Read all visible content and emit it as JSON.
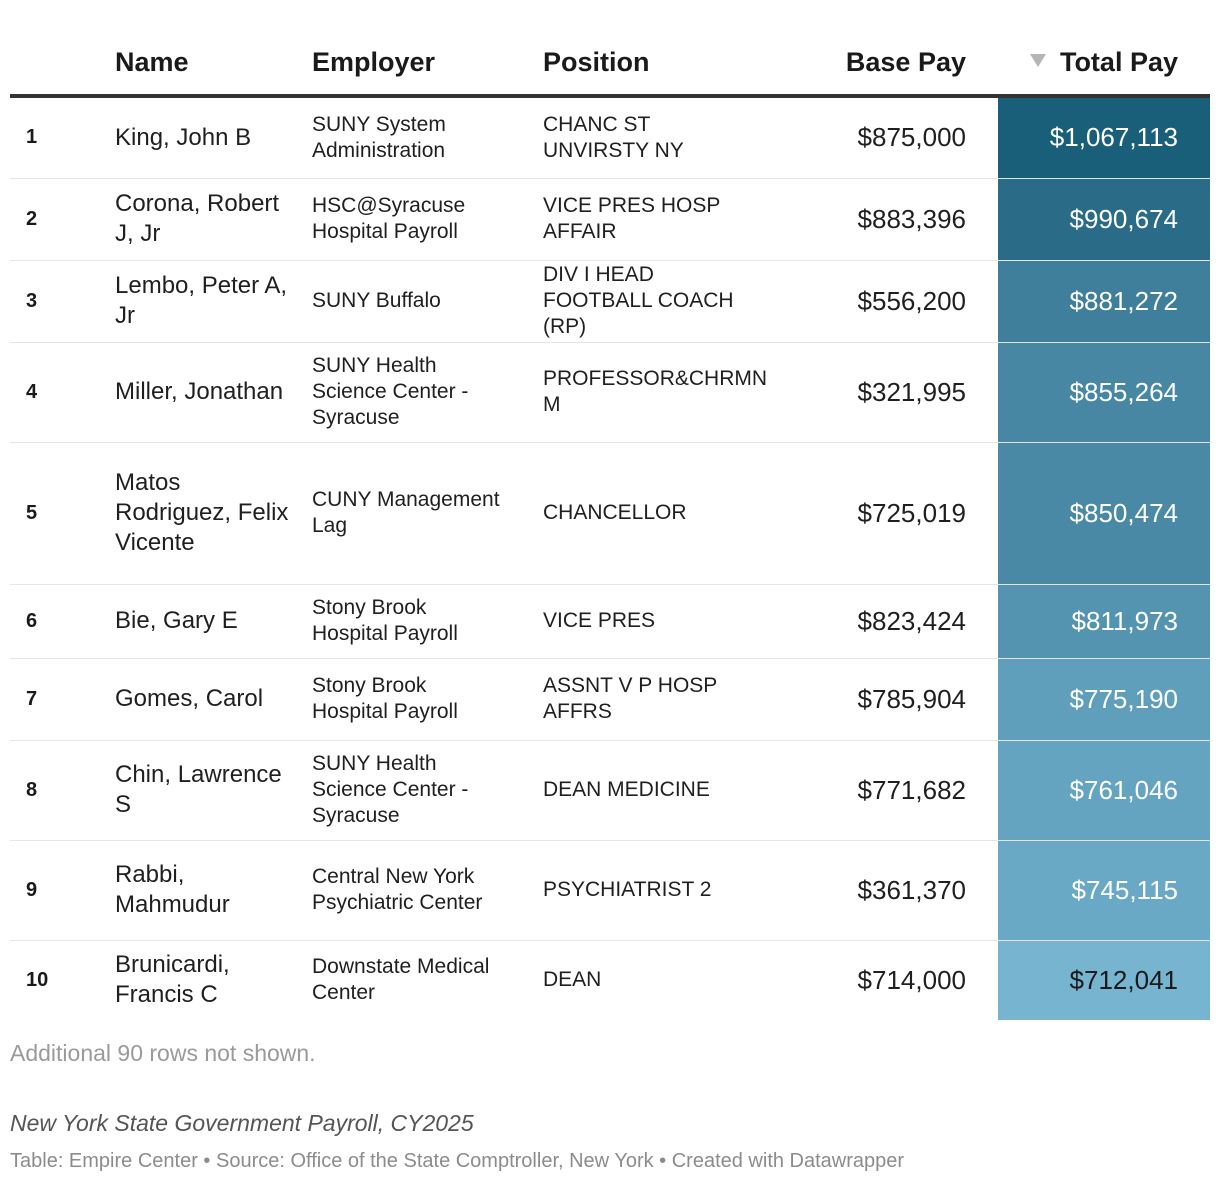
{
  "chart_data": {
    "type": "table",
    "columns": {
      "rank": "",
      "name": "Name",
      "employer": "Employer",
      "position": "Position",
      "base_pay": "Base Pay",
      "total_pay": "Total Pay"
    },
    "sorted_by": "Total Pay",
    "sort_direction": "descending",
    "rows": [
      {
        "rank": "1",
        "name": "King, John B",
        "employer": "SUNY System Administration",
        "position": "CHANC ST UNVIRSTY NY",
        "base_pay": "$875,000",
        "total_pay": "$1,067,113",
        "base_value": 875000,
        "total_value": 1067113,
        "color": "#1a5f7a",
        "row_height": 82
      },
      {
        "rank": "2",
        "name": "Corona, Robert J, Jr",
        "employer": "HSC@Syracuse Hospital Payroll",
        "position": "VICE PRES HOSP AFFAIR",
        "base_pay": "$883,396",
        "total_pay": "$990,674",
        "base_value": 883396,
        "total_value": 990674,
        "color": "#2a6c88",
        "row_height": 82
      },
      {
        "rank": "3",
        "name": "Lembo, Peter A, Jr",
        "employer": "SUNY Buffalo",
        "position": "DIV I HEAD FOOTBALL COACH (RP)",
        "base_pay": "$556,200",
        "total_pay": "$881,272",
        "base_value": 556200,
        "total_value": 881272,
        "color": "#3f7f9c",
        "row_height": 82
      },
      {
        "rank": "4",
        "name": "Miller, Jonathan",
        "employer": "SUNY Health Science Center - Syracuse",
        "position": "PROFESSOR&CHRMN M",
        "base_pay": "$321,995",
        "total_pay": "$855,264",
        "base_value": 321995,
        "total_value": 855264,
        "color": "#4787a3",
        "row_height": 100
      },
      {
        "rank": "5",
        "name": "Matos Rodriguez, Felix Vicente",
        "employer": "CUNY Management Lag",
        "position": "CHANCELLOR",
        "base_pay": "$725,019",
        "total_pay": "$850,474",
        "base_value": 725019,
        "total_value": 850474,
        "color": "#4989a5",
        "row_height": 142
      },
      {
        "rank": "6",
        "name": "Bie, Gary E",
        "employer": "Stony Brook Hospital Payroll",
        "position": "VICE PRES",
        "base_pay": "$823,424",
        "total_pay": "$811,973",
        "base_value": 823424,
        "total_value": 811973,
        "color": "#5594b0",
        "row_height": 74
      },
      {
        "rank": "7",
        "name": "Gomes, Carol",
        "employer": "Stony Brook Hospital Payroll",
        "position": "ASSNT V P HOSP AFFRS",
        "base_pay": "$785,904",
        "total_pay": "$775,190",
        "base_value": 785904,
        "total_value": 775190,
        "color": "#609fbb",
        "row_height": 82
      },
      {
        "rank": "8",
        "name": "Chin, Lawrence S",
        "employer": "SUNY Health Science Center - Syracuse",
        "position": "DEAN MEDICINE",
        "base_pay": "$771,682",
        "total_pay": "$761,046",
        "base_value": 771682,
        "total_value": 761046,
        "color": "#65a4c0",
        "row_height": 100
      },
      {
        "rank": "9",
        "name": "Rabbi, Mahmudur",
        "employer": "Central New York Psychiatric Center",
        "position": "PSYCHIATRIST 2",
        "base_pay": "$361,370",
        "total_pay": "$745,115",
        "base_value": 361370,
        "total_value": 745115,
        "color": "#6aa9c5",
        "row_height": 100
      },
      {
        "rank": "10",
        "name": "Brunicardi, Francis C",
        "employer": "Downstate Medical Center",
        "position": "DEAN",
        "base_pay": "$714,000",
        "total_pay": "$712,041",
        "base_value": 714000,
        "total_value": 712041,
        "color": "#76b4d0",
        "row_height": 80,
        "dark_text": true
      }
    ]
  },
  "notes": "Additional 90 rows not shown.",
  "caption": "New York State Government Payroll, CY2025",
  "source": "Table: Empire Center • Source: Office of the State Comptroller, New York • Created with Datawrapper"
}
